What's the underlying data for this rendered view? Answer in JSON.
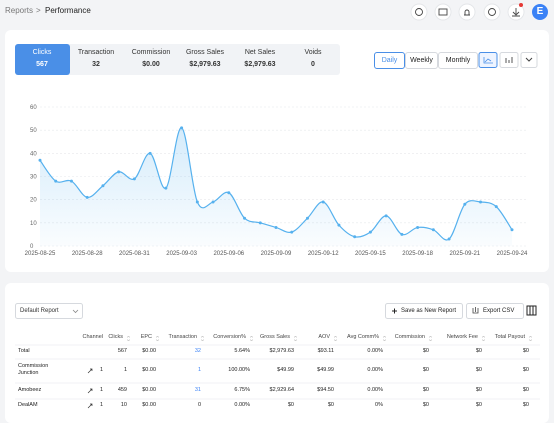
{
  "header": {
    "breadcrumb": [
      "Reports",
      ">",
      "Performance"
    ],
    "avatar": "E"
  },
  "metrics": [
    {
      "label": "Clicks",
      "value": "567"
    },
    {
      "label": "Transaction",
      "value": "32"
    },
    {
      "label": "Commission",
      "value": "$0.00"
    },
    {
      "label": "Gross Sales",
      "value": "$2,979.63"
    },
    {
      "label": "Net Sales",
      "value": "$2,979.63"
    },
    {
      "label": "Voids",
      "value": "0"
    }
  ],
  "periods": [
    "Daily",
    "Weekly",
    "Monthly"
  ],
  "chart_data": {
    "type": "line",
    "color": "#56b1ee",
    "grid": true,
    "categories": [
      "2025-08-25",
      null,
      null,
      "2025-08-28",
      null,
      null,
      "2025-08-31",
      null,
      null,
      "2025-09-03",
      null,
      null,
      "2025-09-06",
      null,
      null,
      "2025-09-09",
      null,
      null,
      "2025-09-12",
      null,
      null,
      "2025-09-15",
      null,
      null,
      "2025-09-18",
      null,
      null,
      "2025-09-21",
      null,
      null,
      "2025-09-24"
    ],
    "values": [
      37,
      28,
      28,
      21,
      26,
      32,
      29,
      40,
      25,
      51,
      19,
      19,
      23,
      12,
      10,
      8,
      6,
      12,
      19,
      9,
      4,
      6,
      13,
      5,
      8,
      7,
      3,
      18,
      19,
      17,
      7
    ],
    "ylim": [
      0,
      60
    ],
    "yticks": [
      0,
      10,
      20,
      30,
      40,
      50,
      60
    ]
  },
  "toolbar": {
    "report": "Default Report",
    "save": "Save as New Report",
    "export": "Export CSV"
  },
  "table": {
    "columns": [
      "Channel",
      "Clicks",
      "EPC",
      "Transaction",
      "Conversion%",
      "Gross Sales",
      "AOV",
      "Avg Comm%",
      "Commission",
      "Network Fee",
      "Total Payout"
    ],
    "rows": [
      {
        "label": "Total",
        "cells": [
          null,
          "567",
          "$0.00",
          "32",
          "5.64%",
          "$2,979.63",
          "$93.11",
          "0.00%",
          "$0",
          "$0",
          "$0"
        ]
      },
      {
        "label": "Commission Junction",
        "cells": [
          "1",
          "1",
          "$0.00",
          "1",
          "100.00%",
          "$49.99",
          "$49.99",
          "0.00%",
          "$0",
          "$0",
          "$0"
        ]
      },
      {
        "label": "Amobeez",
        "cells": [
          "1",
          "459",
          "$0.00",
          "31",
          "6.75%",
          "$2,929.64",
          "$94.50",
          "0.00%",
          "$0",
          "$0",
          "$0"
        ]
      },
      {
        "label": "DealAM",
        "cells": [
          "1",
          "10",
          "$0.00",
          "0",
          "0.00%",
          "$0",
          "$0",
          "0%",
          "$0",
          "$0",
          "$0"
        ]
      }
    ]
  }
}
